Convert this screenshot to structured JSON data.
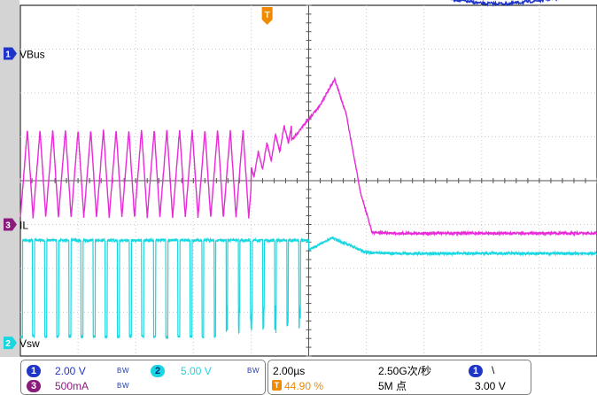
{
  "chart_data": {
    "type": "line",
    "title": "",
    "grid": "dotted 10x8 divisions with center cross and minor ticks",
    "legend": "channel markers at left edge",
    "xlim": [
      -10.0,
      10.0
    ],
    "x_units": "µs",
    "series": [
      {
        "name": "VBus",
        "color": "#1f35c8",
        "channel": "1",
        "x": [
          -10.0,
          -0.4,
          -0.3,
          0.0,
          1.0,
          2.0,
          3.0,
          4.0,
          5.0,
          6.0,
          7.0,
          8.0,
          9.0,
          10.0
        ],
        "y": [
          7.62,
          7.62,
          6.98,
          6.66,
          5.34,
          4.28,
          3.44,
          2.84,
          2.48,
          2.28,
          2.28,
          2.42,
          2.62,
          2.8
        ],
        "units": "V",
        "zero_div": 2.9
      },
      {
        "name": "IL",
        "color": "#e82ad8",
        "channel": "3",
        "switching_until_x": -2.0,
        "ripple_period": 0.44,
        "x": [
          -10.0,
          -2.0,
          -0.6,
          0.4,
          0.9,
          1.3,
          1.8,
          2.2,
          3.0,
          10.0
        ],
        "y": [
          500,
          500,
          960,
          1360,
          1660,
          1260,
          360,
          -90,
          -100,
          -100
        ],
        "ripple_low": 80,
        "ripple_high": 1080,
        "units": "mA",
        "zero_div": -1.0
      },
      {
        "name": "Vsw",
        "color": "#19d7e0",
        "channel": "2",
        "switching_until_x": 0.0,
        "high": 11.7,
        "low": 0.7,
        "x": [
          0.0,
          0.6,
          0.8,
          2.0,
          3.2,
          10.0
        ],
        "y": [
          10.6,
          11.6,
          12.0,
          10.3,
          10.2,
          10.2
        ],
        "units": "V",
        "zero_div": -3.7
      }
    ],
    "trigger": {
      "position_x": -1.44,
      "label": "T",
      "level_marker": "right"
    }
  },
  "ch1": {
    "num": "1",
    "scale": "2.00 V",
    "bw": "B W"
  },
  "ch2": {
    "num": "2",
    "scale": "5.00 V",
    "bw": "B W"
  },
  "ch3": {
    "num": "3",
    "scale": "500mA",
    "bw": "B W"
  },
  "timebase": {
    "scale": "2.00µs",
    "delay_icon": "T",
    "delay": "44.90 %"
  },
  "acquisition": {
    "rate": "2.50G次/秒",
    "length": "5M 点"
  },
  "trigger_info": {
    "source": "1",
    "slope": "\\",
    "level": "3.00 V"
  },
  "labels": {
    "ch1": "VBus",
    "ch3": "IL",
    "ch2": "Vsw",
    "ch1_num": "1",
    "ch3_num": "3",
    "ch2_num": "2",
    "trig": "T"
  },
  "colors": {
    "ch1": "#1f35c8",
    "ch2": "#19d7e0",
    "ch3": "#e82ad8",
    "trigger": "#f08a00",
    "grid": "#c8c8c8"
  }
}
